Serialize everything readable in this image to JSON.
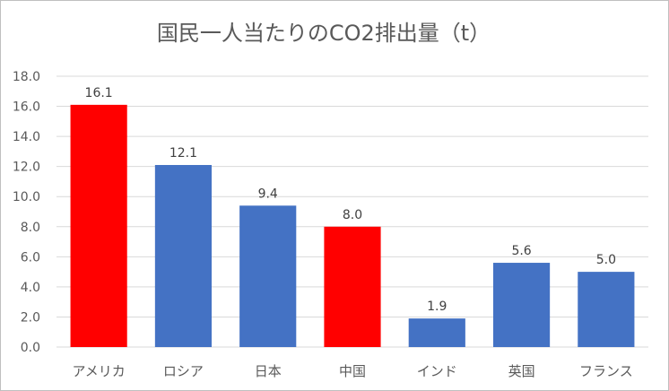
{
  "chart_data": {
    "type": "bar",
    "title": "国民一人当たりのCO2排出量（t）",
    "categories": [
      "アメリカ",
      "ロシア",
      "日本",
      "中国",
      "インド",
      "英国",
      "フランス"
    ],
    "values": [
      16.1,
      12.1,
      9.4,
      8.0,
      1.9,
      5.6,
      5.0
    ],
    "value_labels": [
      "16.1",
      "12.1",
      "9.4",
      "8.0",
      "1.9",
      "5.6",
      "5.0"
    ],
    "bar_colors": [
      "#ff0000",
      "#4472c4",
      "#4472c4",
      "#ff0000",
      "#4472c4",
      "#4472c4",
      "#4472c4"
    ],
    "ylim": [
      0,
      18
    ],
    "yticks": [
      0,
      2,
      4,
      6,
      8,
      10,
      12,
      14,
      16,
      18
    ],
    "ytick_labels": [
      "0.0",
      "2.0",
      "4.0",
      "6.0",
      "8.0",
      "10.0",
      "12.0",
      "14.0",
      "16.0",
      "18.0"
    ],
    "grid": true,
    "legend": "none",
    "xlabel": "",
    "ylabel": ""
  }
}
